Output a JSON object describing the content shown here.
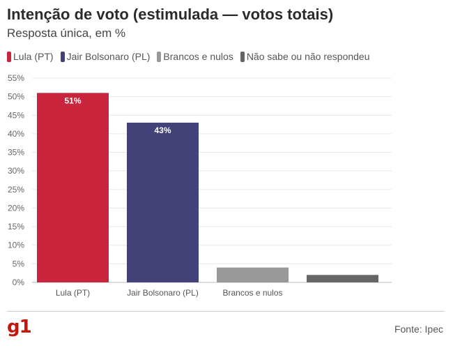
{
  "header": {
    "title": "Intenção de voto (estimulada — votos totais)",
    "subtitle": "Resposta única, em %"
  },
  "legend": [
    {
      "label": "Lula (PT)",
      "color": "#c8243c"
    },
    {
      "label": "Jair Bolsonaro (PL)",
      "color": "#424278"
    },
    {
      "label": "Brancos e nulos",
      "color": "#999999"
    },
    {
      "label": "Não sabe ou não respondeu",
      "color": "#666666"
    }
  ],
  "chart_data": {
    "type": "bar",
    "categories": [
      "Lula (PT)",
      "Jair Bolsonaro (PL)",
      "Brancos e nulos",
      ""
    ],
    "values": [
      51,
      43,
      4,
      2
    ],
    "data_labels": [
      "51%",
      "43%",
      "",
      ""
    ],
    "colors": [
      "#c8243c",
      "#424278",
      "#999999",
      "#666666"
    ],
    "ylim": [
      0,
      55
    ],
    "yticks": [
      0,
      5,
      10,
      15,
      20,
      25,
      30,
      35,
      40,
      45,
      50,
      55
    ],
    "ytick_labels": [
      "0%",
      "5%",
      "10%",
      "15%",
      "20%",
      "25%",
      "30%",
      "35%",
      "40%",
      "45%",
      "50%",
      "55%"
    ],
    "grid": true
  },
  "footer": {
    "logo": "g1",
    "source": "Fonte: Ipec"
  }
}
